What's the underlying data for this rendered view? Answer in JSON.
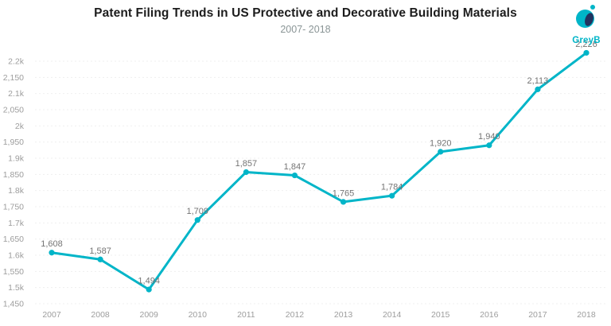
{
  "header": {
    "title": "Patent Filing Trends in US Protective and Decorative Building Materials",
    "subtitle": "2007- 2018"
  },
  "logo": {
    "text": "GreyB"
  },
  "colors": {
    "accent_teal": "#00b5c8",
    "logo_navy": "#22325f",
    "title_text": "#1c1c1c",
    "subtitle_text": "#8a9596",
    "data_label": "#747474",
    "axis_label": "#9d9d9d",
    "gridline": "#efefef"
  },
  "chart_data": {
    "type": "line",
    "title": "Patent Filing Trends in US Protective and Decorative Building Materials",
    "subtitle": "2007- 2018",
    "categories": [
      "2007",
      "2008",
      "2009",
      "2010",
      "2011",
      "2012",
      "2013",
      "2014",
      "2015",
      "2016",
      "2017",
      "2018"
    ],
    "values": [
      1608,
      1587,
      1494,
      1709,
      1857,
      1847,
      1765,
      1784,
      1920,
      1940,
      2113,
      2226
    ],
    "data_labels": [
      "1,608",
      "1,587",
      "1,494",
      "1,709",
      "1,857",
      "1,847",
      "1,765",
      "1,784",
      "1,920",
      "1,940",
      "2,113",
      "2,226"
    ],
    "xlabel": "",
    "ylabel": "",
    "ylim": [
      1450,
      2200
    ],
    "ytick_step": 50,
    "ytick_labels": [
      "1,450",
      "1.5k",
      "1,550",
      "1.6k",
      "1,650",
      "1.7k",
      "1,750",
      "1.8k",
      "1,850",
      "1.9k",
      "1,950",
      "2k",
      "2,050",
      "2.1k",
      "2,150",
      "2.2k"
    ],
    "grid": "horizontal-dashed",
    "legend": "none",
    "line_color": "#00b5c8",
    "marker": "circle"
  }
}
